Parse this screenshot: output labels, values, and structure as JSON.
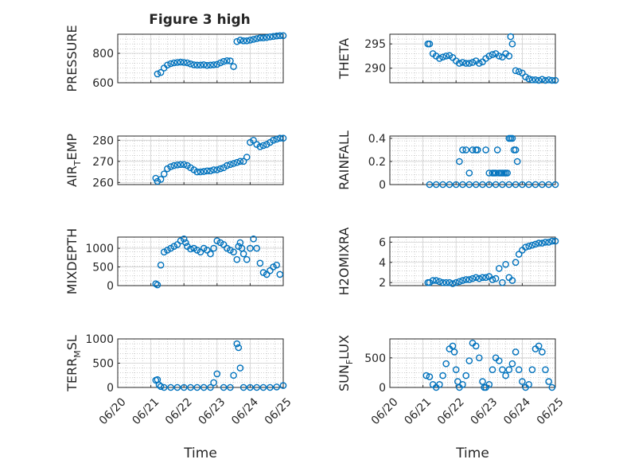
{
  "figure": {
    "title": "Figure 3 high",
    "marker_color": "#0072BD",
    "x_ticks": [
      "06/20",
      "06/21",
      "06/22",
      "06/23",
      "06/24",
      "06/25"
    ]
  },
  "chart_data": [
    {
      "type": "scatter",
      "id": "pressure",
      "ylabel": "PRESSURE",
      "ylim": [
        600,
        930
      ],
      "yticks": [
        600,
        800
      ],
      "xlim": [
        0,
        5
      ],
      "grid": true,
      "x": [
        1.2,
        1.3,
        1.4,
        1.5,
        1.6,
        1.7,
        1.8,
        1.9,
        2.0,
        2.1,
        2.2,
        2.3,
        2.4,
        2.5,
        2.6,
        2.7,
        2.8,
        2.9,
        3.0,
        3.1,
        3.2,
        3.3,
        3.4,
        3.5,
        3.6,
        3.7,
        3.8,
        3.9,
        4.0,
        4.1,
        4.2,
        4.3,
        4.4,
        4.5,
        4.6,
        4.7,
        4.8,
        4.9,
        5.0
      ],
      "y": [
        660,
        670,
        700,
        720,
        730,
        735,
        738,
        740,
        738,
        735,
        728,
        722,
        720,
        720,
        722,
        718,
        720,
        722,
        725,
        735,
        745,
        750,
        748,
        710,
        880,
        890,
        885,
        885,
        890,
        895,
        900,
        905,
        905,
        908,
        912,
        915,
        918,
        920,
        920
      ]
    },
    {
      "type": "scatter",
      "id": "theta",
      "ylabel": "THETA",
      "ylim": [
        287,
        297
      ],
      "yticks": [
        290,
        295
      ],
      "xlim": [
        0,
        5
      ],
      "grid": true,
      "x": [
        1.15,
        1.2,
        1.3,
        1.4,
        1.5,
        1.6,
        1.7,
        1.8,
        1.9,
        2.0,
        2.1,
        2.2,
        2.3,
        2.4,
        2.5,
        2.6,
        2.7,
        2.8,
        2.9,
        3.0,
        3.1,
        3.2,
        3.3,
        3.4,
        3.5,
        3.6,
        3.65,
        3.7,
        3.8,
        3.9,
        4.0,
        4.1,
        4.2,
        4.3,
        4.4,
        4.5,
        4.6,
        4.7,
        4.8,
        4.9,
        5.0
      ],
      "y": [
        295,
        295,
        293,
        292.5,
        292,
        292.3,
        292.5,
        292.6,
        292.2,
        291.5,
        291,
        291.2,
        291,
        291,
        291.2,
        291.5,
        291,
        291.3,
        292,
        292.5,
        292.8,
        293,
        292.5,
        292.3,
        293,
        292.5,
        296.5,
        295,
        289.5,
        289.3,
        289,
        288.2,
        287.8,
        287.6,
        287.6,
        287.5,
        287.7,
        287.5,
        287.6,
        287.5,
        287.5
      ]
    },
    {
      "type": "scatter",
      "id": "air_temp",
      "ylabel": "AIR",
      "ylabel_sub": "T",
      "ylabel_rest": "EMP",
      "ylim": [
        259,
        282
      ],
      "yticks": [
        260,
        270,
        280
      ],
      "xlim": [
        0,
        5
      ],
      "grid": true,
      "x": [
        1.15,
        1.2,
        1.3,
        1.4,
        1.5,
        1.6,
        1.7,
        1.8,
        1.9,
        2.0,
        2.1,
        2.2,
        2.3,
        2.4,
        2.5,
        2.6,
        2.7,
        2.8,
        2.9,
        3.0,
        3.1,
        3.2,
        3.3,
        3.4,
        3.5,
        3.6,
        3.7,
        3.8,
        3.9,
        4.0,
        4.1,
        4.2,
        4.3,
        4.4,
        4.5,
        4.6,
        4.7,
        4.8,
        4.9,
        5.0
      ],
      "y": [
        262,
        260.5,
        261.5,
        264,
        266.5,
        267.5,
        268,
        268.3,
        268.5,
        268.5,
        268,
        267,
        266,
        265,
        265,
        265.2,
        265.5,
        265.5,
        266,
        266,
        266.5,
        267,
        268,
        268.5,
        269,
        269.5,
        270,
        270,
        272,
        279,
        280,
        278,
        277,
        277.5,
        278,
        279,
        280,
        280.5,
        281,
        281
      ]
    },
    {
      "type": "scatter",
      "id": "rainfall",
      "ylabel": "RAINFALL",
      "ylim": [
        0,
        0.42
      ],
      "yticks": [
        0,
        0.2,
        0.4
      ],
      "xlim": [
        0,
        5
      ],
      "grid": true,
      "x": [
        1.2,
        1.4,
        1.6,
        1.8,
        2.0,
        2.2,
        2.4,
        2.6,
        2.8,
        3.0,
        3.2,
        3.4,
        3.6,
        3.8,
        4.0,
        4.2,
        4.4,
        4.6,
        4.8,
        5.0,
        2.1,
        2.2,
        2.3,
        2.4,
        2.5,
        2.6,
        2.65,
        2.9,
        3.0,
        3.1,
        3.15,
        3.2,
        3.25,
        3.3,
        3.35,
        3.4,
        3.45,
        3.5,
        3.55,
        3.6,
        3.65,
        3.7,
        3.75,
        3.8,
        3.85
      ],
      "y": [
        0,
        0,
        0,
        0,
        0,
        0,
        0,
        0,
        0,
        0,
        0,
        0,
        0,
        0,
        0,
        0,
        0,
        0,
        0,
        0,
        0.2,
        0.3,
        0.3,
        0.1,
        0.3,
        0.3,
        0.3,
        0.3,
        0.1,
        0.1,
        0.1,
        0.1,
        0.3,
        0.1,
        0.1,
        0.1,
        0.1,
        0.1,
        0.1,
        0.4,
        0.4,
        0.4,
        0.3,
        0.3,
        0.2
      ]
    },
    {
      "type": "scatter",
      "id": "mixdepth",
      "ylabel": "MIXDEPTH",
      "ylim": [
        0,
        1300
      ],
      "yticks": [
        0,
        500,
        1000
      ],
      "xlim": [
        0,
        5
      ],
      "grid": true,
      "x": [
        1.15,
        1.2,
        1.3,
        1.4,
        1.5,
        1.6,
        1.7,
        1.8,
        1.9,
        2.0,
        2.05,
        2.1,
        2.2,
        2.3,
        2.4,
        2.5,
        2.6,
        2.7,
        2.8,
        2.9,
        3.0,
        3.1,
        3.2,
        3.3,
        3.4,
        3.5,
        3.6,
        3.65,
        3.7,
        3.75,
        3.8,
        3.9,
        4.0,
        4.1,
        4.2,
        4.3,
        4.4,
        4.5,
        4.6,
        4.7,
        4.8,
        4.9
      ],
      "y": [
        50,
        20,
        550,
        900,
        950,
        1000,
        1050,
        1100,
        1200,
        1250,
        1150,
        1050,
        980,
        1000,
        950,
        900,
        1000,
        950,
        850,
        1000,
        1200,
        1150,
        1100,
        1000,
        950,
        900,
        700,
        1050,
        1150,
        1000,
        850,
        700,
        1000,
        1250,
        1000,
        600,
        350,
        300,
        400,
        500,
        550,
        300
      ]
    },
    {
      "type": "scatter",
      "id": "h2omixra",
      "ylabel": "H2OMIXRA",
      "ylim": [
        1.7,
        6.5
      ],
      "yticks": [
        2,
        4,
        6
      ],
      "xlim": [
        0,
        5
      ],
      "grid": true,
      "x": [
        1.15,
        1.2,
        1.3,
        1.4,
        1.5,
        1.6,
        1.7,
        1.8,
        1.9,
        2.0,
        2.1,
        2.2,
        2.3,
        2.4,
        2.5,
        2.6,
        2.7,
        2.8,
        2.9,
        3.0,
        3.1,
        3.2,
        3.3,
        3.4,
        3.5,
        3.6,
        3.7,
        3.8,
        3.9,
        4.0,
        4.1,
        4.2,
        4.3,
        4.4,
        4.5,
        4.6,
        4.7,
        4.8,
        4.9,
        5.0
      ],
      "y": [
        2.0,
        2.0,
        2.2,
        2.2,
        2.1,
        2.0,
        2.0,
        2.0,
        1.9,
        2.0,
        2.1,
        2.2,
        2.3,
        2.3,
        2.4,
        2.5,
        2.4,
        2.5,
        2.5,
        2.6,
        2.3,
        2.4,
        3.4,
        2.0,
        3.8,
        2.5,
        2.2,
        4.0,
        4.8,
        5.2,
        5.5,
        5.6,
        5.7,
        5.8,
        5.9,
        5.9,
        6.0,
        6.0,
        6.1,
        6.1
      ]
    },
    {
      "type": "scatter",
      "id": "terr_msl",
      "ylabel": "TERR",
      "ylabel_sub": "M",
      "ylabel_rest": "SL",
      "ylim": [
        0,
        1000
      ],
      "yticks": [
        0,
        500,
        1000
      ],
      "xlim": [
        0,
        5
      ],
      "grid": true,
      "x": [
        1.15,
        1.2,
        1.25,
        1.3,
        1.4,
        1.6,
        1.8,
        2.0,
        2.2,
        2.4,
        2.6,
        2.8,
        2.9,
        3.0,
        3.2,
        3.4,
        3.5,
        3.6,
        3.65,
        3.7,
        3.8,
        4.0,
        4.2,
        4.4,
        4.6,
        4.8,
        5.0
      ],
      "y": [
        150,
        160,
        50,
        20,
        0,
        0,
        0,
        0,
        0,
        0,
        0,
        0,
        100,
        280,
        0,
        0,
        250,
        900,
        820,
        400,
        0,
        0,
        0,
        0,
        0,
        10,
        40
      ]
    },
    {
      "type": "scatter",
      "id": "sun_flux",
      "ylabel": "SUN",
      "ylabel_sub": "F",
      "ylabel_rest": "LUX",
      "ylim": [
        0,
        820
      ],
      "yticks": [
        0,
        500
      ],
      "xlim": [
        0,
        5
      ],
      "grid": true,
      "x": [
        1.1,
        1.2,
        1.3,
        1.4,
        1.5,
        1.6,
        1.7,
        1.8,
        1.9,
        1.95,
        2.0,
        2.05,
        2.1,
        2.2,
        2.3,
        2.4,
        2.5,
        2.6,
        2.7,
        2.8,
        2.85,
        2.9,
        3.0,
        3.1,
        3.2,
        3.3,
        3.4,
        3.5,
        3.6,
        3.7,
        3.8,
        3.9,
        4.0,
        4.1,
        4.2,
        4.3,
        4.4,
        4.5,
        4.6,
        4.7,
        4.8,
        4.9
      ],
      "y": [
        200,
        180,
        50,
        0,
        50,
        200,
        400,
        650,
        700,
        600,
        300,
        100,
        0,
        50,
        200,
        450,
        750,
        700,
        500,
        100,
        0,
        0,
        50,
        300,
        500,
        450,
        300,
        200,
        300,
        400,
        600,
        300,
        100,
        0,
        50,
        300,
        650,
        700,
        600,
        300,
        100,
        0
      ]
    }
  ]
}
